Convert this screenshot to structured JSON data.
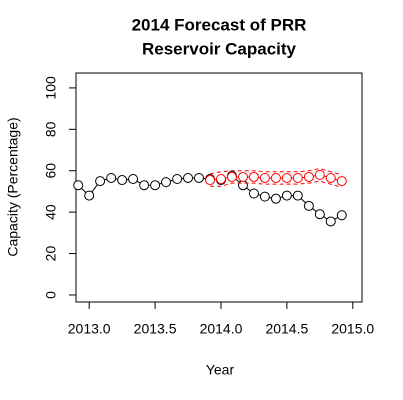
{
  "chart_data": {
    "type": "line",
    "title": [
      "2014 Forecast of PRR",
      "Reservoir Capacity"
    ],
    "x_label": "Year",
    "y_label": "Capacity (Percentage)",
    "xlim": [
      2012.9,
      2015.07
    ],
    "ylim": [
      -3.4,
      107.2
    ],
    "xticks": [
      {
        "value": 2013,
        "label": "2013.0"
      },
      {
        "value": 2013.5,
        "label": "2013.5"
      },
      {
        "value": 2014,
        "label": "2014.0"
      },
      {
        "value": 2014.5,
        "label": "2014.5"
      },
      {
        "value": 2015,
        "label": "2015.0"
      }
    ],
    "yticks": [
      0,
      20,
      40,
      60,
      80,
      100
    ],
    "series": [
      {
        "color": "#000000",
        "markers": true,
        "dashed": false,
        "x": [
          2012.917,
          2013.0,
          2013.083,
          2013.167,
          2013.25,
          2013.333,
          2013.417,
          2013.5,
          2013.583,
          2013.667,
          2013.75,
          2013.833,
          2013.917,
          2014.0,
          2014.083,
          2014.167,
          2014.25,
          2014.333,
          2014.417,
          2014.5,
          2014.583,
          2014.667,
          2014.75,
          2014.833,
          2014.917
        ],
        "values": [
          53,
          48,
          55,
          56.5,
          55.5,
          56,
          53,
          53,
          54.5,
          56,
          56.5,
          56.5,
          56,
          55.5,
          57.5,
          53,
          49,
          47.5,
          46.5,
          48,
          48,
          43,
          39,
          35.5,
          38.5
        ]
      },
      {
        "color": "#ff0000",
        "markers": true,
        "dashed": false,
        "x": [
          2013.917,
          2014.0,
          2014.083,
          2014.167,
          2014.25,
          2014.333,
          2014.417,
          2014.5,
          2014.583,
          2014.667,
          2014.75,
          2014.833,
          2014.917
        ],
        "values": [
          55.5,
          56,
          57,
          57,
          57,
          56.5,
          56.5,
          56.5,
          56.5,
          57,
          58,
          56.5,
          55
        ]
      },
      {
        "color": "#ff0000",
        "markers": false,
        "dashed": true,
        "x": [
          2013.917,
          2014.0,
          2014.083,
          2014.167,
          2014.25,
          2014.333,
          2014.417,
          2014.5,
          2014.583,
          2014.667,
          2014.75,
          2014.833,
          2014.917
        ],
        "values": [
          58.5,
          59.5,
          60,
          60,
          60,
          59.5,
          59.5,
          59.5,
          59.5,
          60,
          61,
          59.5,
          58
        ]
      },
      {
        "color": "#ff0000",
        "markers": false,
        "dashed": true,
        "x": [
          2013.917,
          2014.0,
          2014.083,
          2014.167,
          2014.25,
          2014.333,
          2014.417,
          2014.5,
          2014.583,
          2014.667,
          2014.75,
          2014.833,
          2014.917
        ],
        "values": [
          52.5,
          52.5,
          54,
          54,
          54,
          53.5,
          53.5,
          53.5,
          53.5,
          54,
          55,
          53.5,
          52
        ]
      }
    ]
  }
}
